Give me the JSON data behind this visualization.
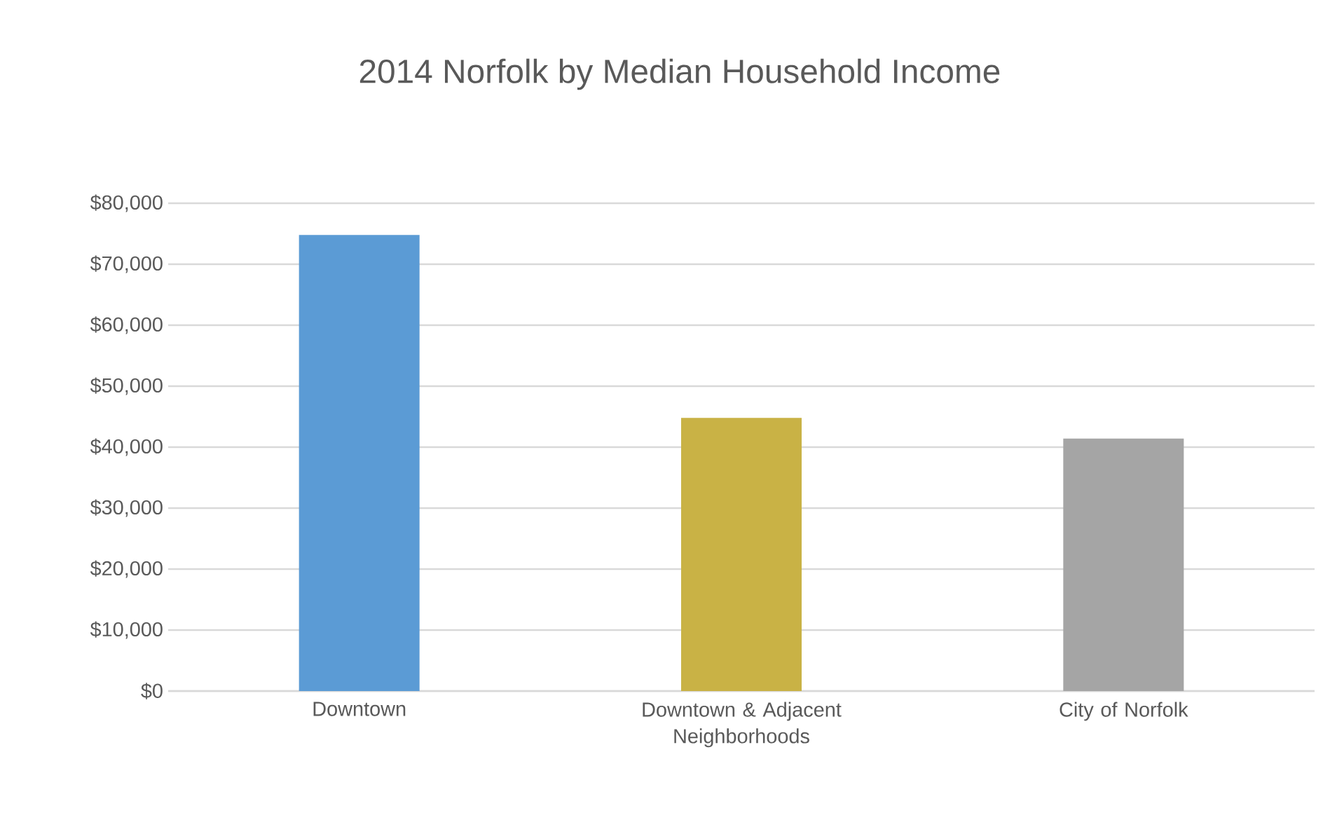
{
  "chart_data": {
    "type": "bar",
    "title": "2014 Norfolk by Median Household Income",
    "categories": [
      "Downtown",
      "Downtown & Adjacent Neighborhoods",
      "City of Norfolk"
    ],
    "values": [
      74800,
      44800,
      41400
    ],
    "colors": [
      "#5b9bd5",
      "#c9b245",
      "#a5a5a5"
    ],
    "ylim": [
      0,
      80000
    ],
    "yticks": [
      {
        "value": 0,
        "label": "$0"
      },
      {
        "value": 10000,
        "label": "$10,000"
      },
      {
        "value": 20000,
        "label": "$20,000"
      },
      {
        "value": 30000,
        "label": "$30,000"
      },
      {
        "value": 40000,
        "label": "$40,000"
      },
      {
        "value": 50000,
        "label": "$50,000"
      },
      {
        "value": 60000,
        "label": "$60,000"
      },
      {
        "value": 70000,
        "label": "$70,000"
      },
      {
        "value": 80000,
        "label": "$80,000"
      }
    ],
    "grid": "y"
  }
}
